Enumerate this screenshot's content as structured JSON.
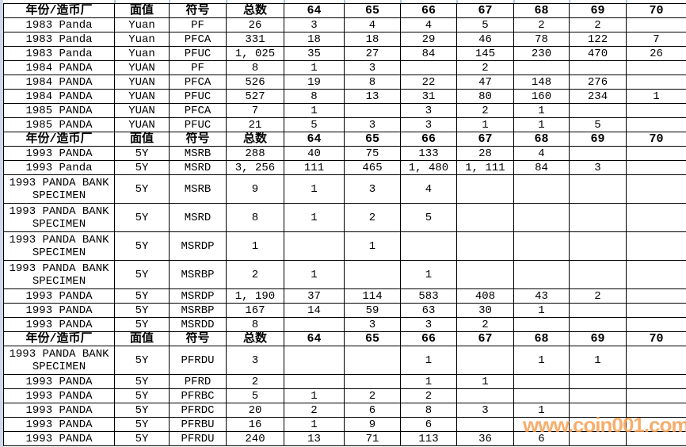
{
  "chart_data": {
    "type": "table",
    "title": "Panda coin grading census table",
    "columns": [
      {
        "key": "year_mint",
        "label": "年份/造币厂"
      },
      {
        "key": "denomination",
        "label": "面值"
      },
      {
        "key": "symbol",
        "label": "符号"
      },
      {
        "key": "total",
        "label": "总数"
      },
      {
        "key": "g64",
        "label": "64"
      },
      {
        "key": "g65",
        "label": "65"
      },
      {
        "key": "g66",
        "label": "66"
      },
      {
        "key": "g67",
        "label": "67"
      },
      {
        "key": "g68",
        "label": "68"
      },
      {
        "key": "g69",
        "label": "69"
      },
      {
        "key": "g70",
        "label": "70"
      }
    ],
    "rows": [
      {
        "type": "header"
      },
      {
        "type": "data",
        "tall": false,
        "cells": [
          "1983 Panda",
          "Yuan",
          "PF",
          "26",
          "3",
          "4",
          "4",
          "5",
          "2",
          "2",
          ""
        ]
      },
      {
        "type": "data",
        "tall": false,
        "cells": [
          "1983 Panda",
          "Yuan",
          "PFCA",
          "331",
          "18",
          "18",
          "29",
          "46",
          "78",
          "122",
          "7"
        ]
      },
      {
        "type": "data",
        "tall": false,
        "cells": [
          "1983 Panda",
          "Yuan",
          "PFUC",
          "1, 025",
          "35",
          "27",
          "84",
          "145",
          "230",
          "470",
          "26"
        ]
      },
      {
        "type": "data",
        "tall": false,
        "cells": [
          "1984 PANDA",
          "YUAN",
          "PF",
          "8",
          "1",
          "3",
          "",
          "2",
          "",
          "",
          ""
        ]
      },
      {
        "type": "data",
        "tall": false,
        "cells": [
          "1984 PANDA",
          "YUAN",
          "PFCA",
          "526",
          "19",
          "8",
          "22",
          "47",
          "148",
          "276",
          ""
        ]
      },
      {
        "type": "data",
        "tall": false,
        "cells": [
          "1984 PANDA",
          "YUAN",
          "PFUC",
          "527",
          "8",
          "13",
          "31",
          "80",
          "160",
          "234",
          "1"
        ]
      },
      {
        "type": "data",
        "tall": false,
        "cells": [
          "1985 PANDA",
          "YUAN",
          "PFCA",
          "7",
          "1",
          "",
          "3",
          "2",
          "1",
          "",
          ""
        ]
      },
      {
        "type": "data",
        "tall": false,
        "cells": [
          "1985 PANDA",
          "YUAN",
          "PFUC",
          "21",
          "5",
          "3",
          "3",
          "1",
          "1",
          "5",
          ""
        ]
      },
      {
        "type": "header"
      },
      {
        "type": "data",
        "tall": false,
        "cells": [
          "1993 PANDA",
          "5Y",
          "MSRB",
          "288",
          "40",
          "75",
          "133",
          "28",
          "4",
          "",
          ""
        ]
      },
      {
        "type": "data",
        "tall": false,
        "cells": [
          "1993 Panda",
          "5Y",
          "MSRD",
          "3, 256",
          "111",
          "465",
          "1, 480",
          "1, 111",
          "84",
          "3",
          ""
        ]
      },
      {
        "type": "data",
        "tall": true,
        "cells": [
          "1993 PANDA BANK SPECIMEN",
          "5Y",
          "MSRB",
          "9",
          "1",
          "3",
          "4",
          "",
          "",
          "",
          ""
        ]
      },
      {
        "type": "data",
        "tall": true,
        "cells": [
          "1993 PANDA BANK SPECIMEN",
          "5Y",
          "MSRD",
          "8",
          "1",
          "2",
          "5",
          "",
          "",
          "",
          ""
        ]
      },
      {
        "type": "data",
        "tall": true,
        "cells": [
          "1993 PANDA BANK SPECIMEN",
          "5Y",
          "MSRDP",
          "1",
          "",
          "1",
          "",
          "",
          "",
          "",
          ""
        ]
      },
      {
        "type": "data",
        "tall": true,
        "cells": [
          "1993 PANDA BANK SPECIMEN",
          "5Y",
          "MSRBP",
          "2",
          "1",
          "",
          "1",
          "",
          "",
          "",
          ""
        ]
      },
      {
        "type": "data",
        "tall": false,
        "cells": [
          "1993 PANDA",
          "5Y",
          "MSRDP",
          "1, 190",
          "37",
          "114",
          "583",
          "408",
          "43",
          "2",
          ""
        ]
      },
      {
        "type": "data",
        "tall": false,
        "cells": [
          "1993 PANDA",
          "5Y",
          "MSRBP",
          "167",
          "14",
          "59",
          "63",
          "30",
          "1",
          "",
          ""
        ]
      },
      {
        "type": "data",
        "tall": false,
        "cells": [
          "1993 PANDA",
          "5Y",
          "MSRDD",
          "8",
          "",
          "3",
          "3",
          "2",
          "",
          "",
          ""
        ]
      },
      {
        "type": "header"
      },
      {
        "type": "data",
        "tall": true,
        "cells": [
          "1993 PANDA BANK SPECIMEN",
          "5Y",
          "PFRDU",
          "3",
          "",
          "",
          "1",
          "",
          "1",
          "1",
          ""
        ]
      },
      {
        "type": "data",
        "tall": false,
        "cells": [
          "1993 PANDA",
          "5Y",
          "PFRD",
          "2",
          "",
          "",
          "1",
          "1",
          "",
          "",
          ""
        ]
      },
      {
        "type": "data",
        "tall": false,
        "cells": [
          "1993 PANDA",
          "5Y",
          "PFRBC",
          "5",
          "1",
          "2",
          "2",
          "",
          "",
          "",
          ""
        ]
      },
      {
        "type": "data",
        "tall": false,
        "cells": [
          "1993 PANDA",
          "5Y",
          "PFRDC",
          "20",
          "2",
          "6",
          "8",
          "3",
          "1",
          "",
          ""
        ]
      },
      {
        "type": "data",
        "tall": false,
        "cells": [
          "1993 PANDA",
          "5Y",
          "PFRBU",
          "16",
          "1",
          "9",
          "6",
          "",
          "",
          "",
          ""
        ]
      },
      {
        "type": "data",
        "tall": false,
        "cells": [
          "1993 PANDA",
          "5Y",
          "PFRDU",
          "240",
          "13",
          "71",
          "113",
          "36",
          "6",
          "",
          ""
        ]
      }
    ]
  },
  "watermark": {
    "text": "www.coin001.com",
    "color": "#f6a053"
  },
  "colors": {
    "grid": "#000000",
    "background": "#ffffff",
    "edge_strip": "#cdd9ea",
    "grid_tick": "#aec3de"
  }
}
